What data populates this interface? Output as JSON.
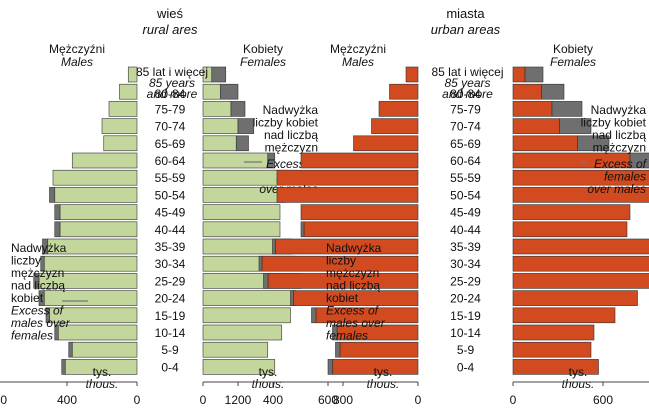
{
  "chart_data": [
    {
      "type": "bar",
      "orientation": "horizontal",
      "subtype": "population-pyramid",
      "title": "wieś",
      "subtitle": "rural ares",
      "left_label": {
        "pl": "Mężczyźni",
        "en": "Males"
      },
      "right_label": {
        "pl": "Kobiety",
        "en": "Females"
      },
      "unit": {
        "pl": "tys.",
        "en": "thous."
      },
      "xlim": [
        0,
        800
      ],
      "ticks_left": [
        "800",
        "400",
        "0"
      ],
      "ticks_right": [
        "0",
        "400",
        "800"
      ],
      "age_groups": [
        "0-4",
        "5-9",
        "10-14",
        "15-19",
        "20-24",
        "25-29",
        "30-34",
        "35-39",
        "40-44",
        "45-49",
        "50-54",
        "55-59",
        "60-64",
        "65-69",
        "70-74",
        "75-79",
        "80-84",
        "85 lat i więcej"
      ],
      "top_group_en": [
        "85 years",
        "and more"
      ],
      "annotation_females": {
        "pl": [
          "Nadwyżka",
          "liczby kobiet",
          "nad liczbą",
          "mężczyzn"
        ],
        "en": [
          "Excess of",
          "females",
          "over males"
        ]
      },
      "annotation_males": {
        "pl": [
          "Nadwyżka",
          "liczby",
          "mężczyzn",
          "nad liczbą",
          "kobiet"
        ],
        "en": [
          "Excess of",
          "males over",
          "females"
        ]
      },
      "series": [
        {
          "name": "Males",
          "values": [
            430,
            390,
            470,
            520,
            560,
            590,
            550,
            540,
            470,
            470,
            500,
            480,
            370,
            190,
            200,
            160,
            100,
            50
          ]
        },
        {
          "name": "Females",
          "values": [
            410,
            370,
            450,
            500,
            530,
            560,
            530,
            510,
            440,
            440,
            470,
            480,
            410,
            260,
            290,
            240,
            200,
            130
          ]
        }
      ],
      "colors": {
        "base": "#c3d69b",
        "excess": "#6f6f6f"
      }
    },
    {
      "type": "bar",
      "orientation": "horizontal",
      "subtype": "population-pyramid",
      "title": "miasta",
      "subtitle": "urban areas",
      "left_label": {
        "pl": "Mężczyźni",
        "en": "Males"
      },
      "right_label": {
        "pl": "Kobiety",
        "en": "Females"
      },
      "unit": {
        "pl": "tys.",
        "en": "thous."
      },
      "xlim": [
        0,
        1200
      ],
      "ticks_left": [
        "1200",
        "600",
        "0"
      ],
      "ticks_right": [
        "0",
        "600",
        "1200"
      ],
      "age_groups": [
        "0-4",
        "5-9",
        "10-14",
        "15-19",
        "20-24",
        "25-29",
        "30-34",
        "35-39",
        "40-44",
        "45-49",
        "50-54",
        "55-59",
        "60-64",
        "65-69",
        "70-74",
        "75-79",
        "80-84",
        "85 lat i więcej"
      ],
      "top_group_en": [
        "85 years",
        "and more"
      ],
      "annotation_females": {
        "pl": [
          "Nadwyżka",
          "liczby kobiet",
          "nad liczbą",
          "mężczyzn"
        ],
        "en": [
          "Excess of",
          "females",
          "over males"
        ]
      },
      "annotation_males": {
        "pl": [
          "Nadwyżka",
          "liczby",
          "mężczyzn",
          "nad liczbą",
          "kobiet"
        ],
        "en": [
          "Excess of",
          "males over",
          "females"
        ]
      },
      "series": [
        {
          "name": "Males",
          "values": [
            600,
            550,
            570,
            710,
            850,
            1030,
            1060,
            970,
            780,
            780,
            940,
            940,
            780,
            430,
            310,
            260,
            190,
            80
          ]
        },
        {
          "name": "Females",
          "values": [
            570,
            520,
            540,
            680,
            830,
            1000,
            1040,
            950,
            760,
            780,
            980,
            1000,
            980,
            640,
            520,
            460,
            340,
            200
          ]
        }
      ],
      "colors": {
        "base": "#d24a1f",
        "excess": "#6f6f6f"
      }
    }
  ]
}
